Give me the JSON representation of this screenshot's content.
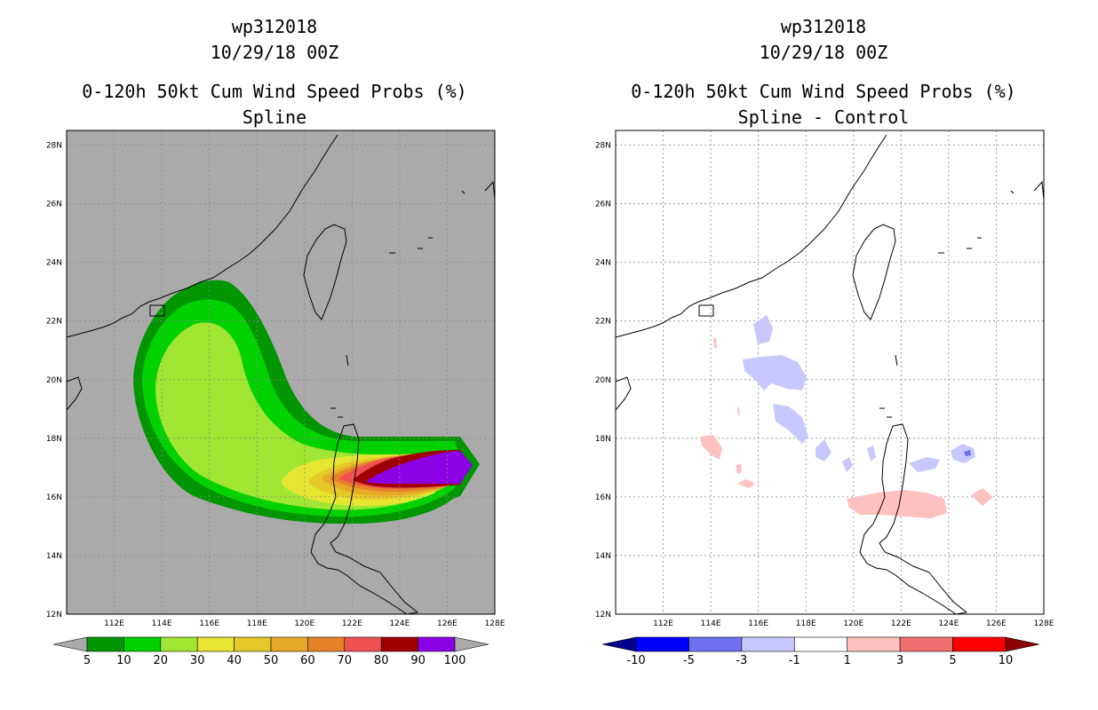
{
  "left": {
    "titles": [
      "wp312018",
      "10/29/18 00Z",
      "0-120h 50kt Cum Wind Speed Probs (%)",
      "Spline"
    ],
    "background": "#aaaaaa",
    "colorbar": {
      "labels": [
        "5",
        "10",
        "20",
        "30",
        "40",
        "50",
        "60",
        "70",
        "80",
        "90",
        "100"
      ],
      "colors": [
        "#009600",
        "#00d200",
        "#a0e632",
        "#e6e632",
        "#e6c828",
        "#e6aa28",
        "#e68228",
        "#f05050",
        "#a00000",
        "#8c00e6"
      ],
      "end_colors": [
        "#aaaaaa",
        "#aaaaaa"
      ]
    }
  },
  "right": {
    "titles": [
      "wp312018",
      "10/29/18 00Z",
      "0-120h 50kt Cum Wind Speed Probs (%)",
      "Spline - Control"
    ],
    "background": "#ffffff",
    "colorbar": {
      "labels": [
        "-10",
        "-5",
        "-3",
        "-1",
        "1",
        "3",
        "5",
        "10"
      ],
      "colors": [
        "#0000ff",
        "#7070f0",
        "#c8c8ff",
        "#ffffff",
        "#ffc0c0",
        "#f07070",
        "#ff0000"
      ],
      "end_colors": [
        "#00008c",
        "#8c0000"
      ]
    }
  },
  "axes": {
    "x_ticks": [
      "112E",
      "114E",
      "116E",
      "118E",
      "120E",
      "122E",
      "124E",
      "126E",
      "128E"
    ],
    "y_ticks": [
      "12N",
      "14N",
      "16N",
      "18N",
      "20N",
      "22N",
      "24N",
      "26N",
      "28N"
    ]
  }
}
